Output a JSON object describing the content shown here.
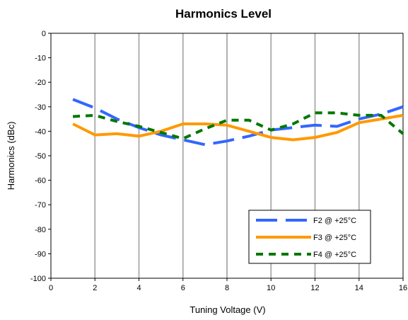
{
  "chart_data": {
    "type": "line",
    "title": "Harmonics Level",
    "xlabel": "Tuning Voltage (V)",
    "ylabel": "Harmonics (dBc)",
    "xlim": [
      0,
      16
    ],
    "ylim": [
      -100,
      0
    ],
    "xticks": [
      0,
      2,
      4,
      6,
      8,
      10,
      12,
      14,
      16
    ],
    "yticks": [
      0,
      -10,
      -20,
      -30,
      -40,
      -50,
      -60,
      -70,
      -80,
      -90,
      -100
    ],
    "xgrid": true,
    "ygrid": false,
    "legend_position": "bottom-right",
    "series": [
      {
        "name": "F2 @ +25°C",
        "color": "#3366ff",
        "dash": "long-dash",
        "x": [
          1,
          2,
          3,
          4,
          5,
          6,
          7,
          8,
          9,
          10,
          11,
          12,
          13,
          14,
          15,
          16
        ],
        "y": [
          -27,
          -30.5,
          -35,
          -38.5,
          -41.5,
          -43.5,
          -45.5,
          -44,
          -42,
          -39.5,
          -38.5,
          -37.5,
          -38,
          -35,
          -33,
          -30
        ]
      },
      {
        "name": "F3 @ +25°C",
        "color": "#ff9900",
        "dash": "solid",
        "x": [
          1,
          2,
          3,
          4,
          5,
          6,
          7,
          8,
          9,
          10,
          11,
          12,
          13,
          14,
          15,
          16
        ],
        "y": [
          -37,
          -41.5,
          -41,
          -42,
          -40,
          -37,
          -37,
          -37.5,
          -40,
          -42.5,
          -43.5,
          -42.5,
          -40.5,
          -36.5,
          -35,
          -33.5
        ]
      },
      {
        "name": "F4 @ +25°C",
        "color": "#007700",
        "dash": "short-dash",
        "x": [
          1,
          2,
          3,
          4,
          5,
          6,
          7,
          8,
          9,
          10,
          11,
          12,
          13,
          14,
          15,
          16
        ],
        "y": [
          -34,
          -33.5,
          -36,
          -38,
          -40.5,
          -43,
          -39,
          -35.5,
          -35.5,
          -39.5,
          -37,
          -32.5,
          -32.5,
          -33.5,
          -33.5,
          -41
        ]
      }
    ]
  }
}
